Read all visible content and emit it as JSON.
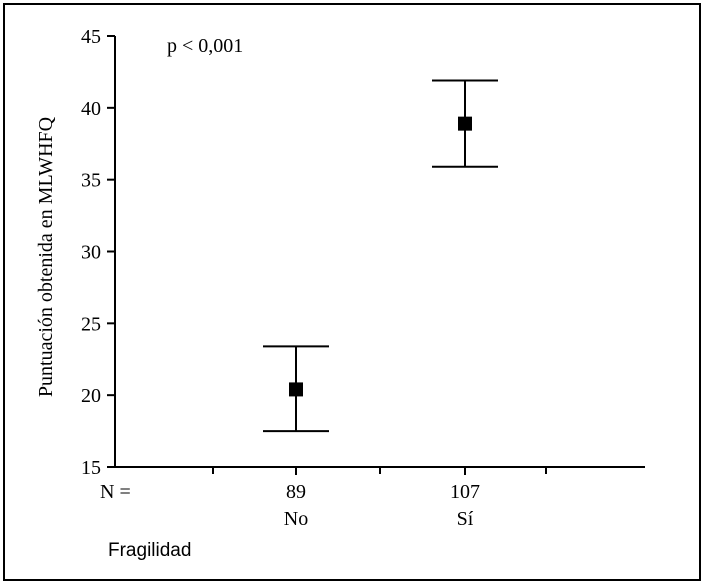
{
  "chart_data": {
    "type": "scatter",
    "subtype": "error-bar",
    "title": "",
    "annotation": "p < 0,001",
    "ylabel": "Puntuación obtenida en MLWHFQ",
    "xlabel": "Fragilidad",
    "n_label": "N =",
    "ylim": [
      15,
      45
    ],
    "yticks": [
      15,
      20,
      25,
      30,
      35,
      40,
      45
    ],
    "categories": [
      {
        "n": "89",
        "label": "No",
        "mean": 20.4,
        "ci_low": 17.5,
        "ci_high": 23.4
      },
      {
        "n": "107",
        "label": "Sí",
        "mean": 38.9,
        "ci_low": 35.9,
        "ci_high": 41.9
      }
    ],
    "grid": false,
    "legend": "none",
    "colors": {
      "marker": "#000000",
      "axis": "#000000",
      "background": "#ffffff"
    }
  }
}
